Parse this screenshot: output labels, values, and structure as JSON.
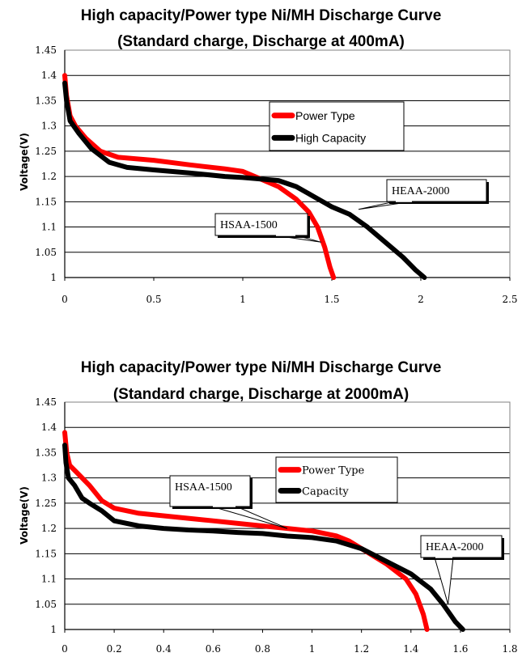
{
  "chart_data": [
    {
      "type": "line",
      "title": "High capacity/Power type Ni/MH Discharge Curve",
      "subtitle": "(Standard charge, Discharge at 400mA)",
      "xlabel": "",
      "ylabel": "Voltage(V)",
      "xlim": [
        0,
        2.5
      ],
      "ylim": [
        1,
        1.45
      ],
      "x_ticks": [
        "0",
        "0.5",
        "1",
        "1.5",
        "2",
        "2.5"
      ],
      "y_ticks": [
        "1",
        "1.05",
        "1.1",
        "1.15",
        "1.2",
        "1.25",
        "1.3",
        "1.35",
        "1.4",
        "1.45"
      ],
      "grid": "horizontal",
      "legend_placement": "center-right",
      "series": [
        {
          "name": "Power Type",
          "color": "#ff0000",
          "points": [
            [
              0,
              1.4
            ],
            [
              0.01,
              1.36
            ],
            [
              0.03,
              1.32
            ],
            [
              0.06,
              1.3
            ],
            [
              0.12,
              1.275
            ],
            [
              0.2,
              1.25
            ],
            [
              0.3,
              1.238
            ],
            [
              0.5,
              1.232
            ],
            [
              0.7,
              1.223
            ],
            [
              0.9,
              1.215
            ],
            [
              1.0,
              1.21
            ],
            [
              1.1,
              1.195
            ],
            [
              1.2,
              1.18
            ],
            [
              1.3,
              1.155
            ],
            [
              1.37,
              1.13
            ],
            [
              1.42,
              1.1
            ],
            [
              1.46,
              1.06
            ],
            [
              1.49,
              1.02
            ],
            [
              1.51,
              1.0
            ]
          ]
        },
        {
          "name": "High Capacity",
          "color": "#000000",
          "points": [
            [
              0,
              1.385
            ],
            [
              0.01,
              1.35
            ],
            [
              0.03,
              1.31
            ],
            [
              0.08,
              1.285
            ],
            [
              0.15,
              1.255
            ],
            [
              0.25,
              1.228
            ],
            [
              0.35,
              1.218
            ],
            [
              0.5,
              1.213
            ],
            [
              0.7,
              1.207
            ],
            [
              0.9,
              1.2
            ],
            [
              1.0,
              1.198
            ],
            [
              1.2,
              1.192
            ],
            [
              1.3,
              1.18
            ],
            [
              1.4,
              1.16
            ],
            [
              1.5,
              1.14
            ],
            [
              1.6,
              1.125
            ],
            [
              1.7,
              1.1
            ],
            [
              1.8,
              1.07
            ],
            [
              1.9,
              1.04
            ],
            [
              1.97,
              1.015
            ],
            [
              2.02,
              1.0
            ]
          ]
        }
      ],
      "annotations": [
        {
          "text": "HSAA-1500",
          "target_series": "Power Type"
        },
        {
          "text": "HEAA-2000",
          "target_series": "High Capacity"
        }
      ]
    },
    {
      "type": "line",
      "title": "High capacity/Power type Ni/MH Discharge Curve",
      "subtitle": "(Standard charge, Discharge at 2000mA)",
      "xlabel": "",
      "ylabel": "Voltage(V)",
      "xlim": [
        0,
        1.8
      ],
      "ylim": [
        1,
        1.45
      ],
      "x_ticks": [
        "0",
        "0.2",
        "0.4",
        "0.6",
        "0.8",
        "1",
        "1.2",
        "1.4",
        "1.6",
        "1.8"
      ],
      "y_ticks": [
        "1",
        "1.05",
        "1.1",
        "1.15",
        "1.2",
        "1.25",
        "1.3",
        "1.35",
        "1.4",
        "1.45"
      ],
      "grid": "horizontal",
      "legend_placement": "top-right",
      "series": [
        {
          "name": "Power Type",
          "color": "#ff0000",
          "points": [
            [
              0,
              1.39
            ],
            [
              0.008,
              1.35
            ],
            [
              0.02,
              1.325
            ],
            [
              0.05,
              1.31
            ],
            [
              0.1,
              1.285
            ],
            [
              0.15,
              1.255
            ],
            [
              0.2,
              1.24
            ],
            [
              0.3,
              1.23
            ],
            [
              0.4,
              1.225
            ],
            [
              0.5,
              1.22
            ],
            [
              0.6,
              1.215
            ],
            [
              0.7,
              1.21
            ],
            [
              0.8,
              1.205
            ],
            [
              0.9,
              1.2
            ],
            [
              1.0,
              1.195
            ],
            [
              1.1,
              1.185
            ],
            [
              1.15,
              1.175
            ],
            [
              1.2,
              1.16
            ],
            [
              1.3,
              1.13
            ],
            [
              1.38,
              1.1
            ],
            [
              1.42,
              1.07
            ],
            [
              1.45,
              1.03
            ],
            [
              1.465,
              1.0
            ]
          ]
        },
        {
          "name": "Capacity",
          "color": "#000000",
          "points": [
            [
              0,
              1.365
            ],
            [
              0.005,
              1.33
            ],
            [
              0.015,
              1.3
            ],
            [
              0.04,
              1.285
            ],
            [
              0.07,
              1.26
            ],
            [
              0.1,
              1.25
            ],
            [
              0.15,
              1.235
            ],
            [
              0.2,
              1.215
            ],
            [
              0.3,
              1.205
            ],
            [
              0.4,
              1.2
            ],
            [
              0.5,
              1.197
            ],
            [
              0.6,
              1.195
            ],
            [
              0.7,
              1.192
            ],
            [
              0.8,
              1.19
            ],
            [
              0.9,
              1.185
            ],
            [
              1.0,
              1.182
            ],
            [
              1.1,
              1.175
            ],
            [
              1.2,
              1.16
            ],
            [
              1.3,
              1.135
            ],
            [
              1.4,
              1.11
            ],
            [
              1.48,
              1.08
            ],
            [
              1.53,
              1.05
            ],
            [
              1.58,
              1.015
            ],
            [
              1.61,
              1.0
            ]
          ]
        }
      ],
      "annotations": [
        {
          "text": "HSAA-1500",
          "target_series": "Power Type"
        },
        {
          "text": "HEAA-2000",
          "target_series": "Capacity"
        }
      ]
    }
  ]
}
